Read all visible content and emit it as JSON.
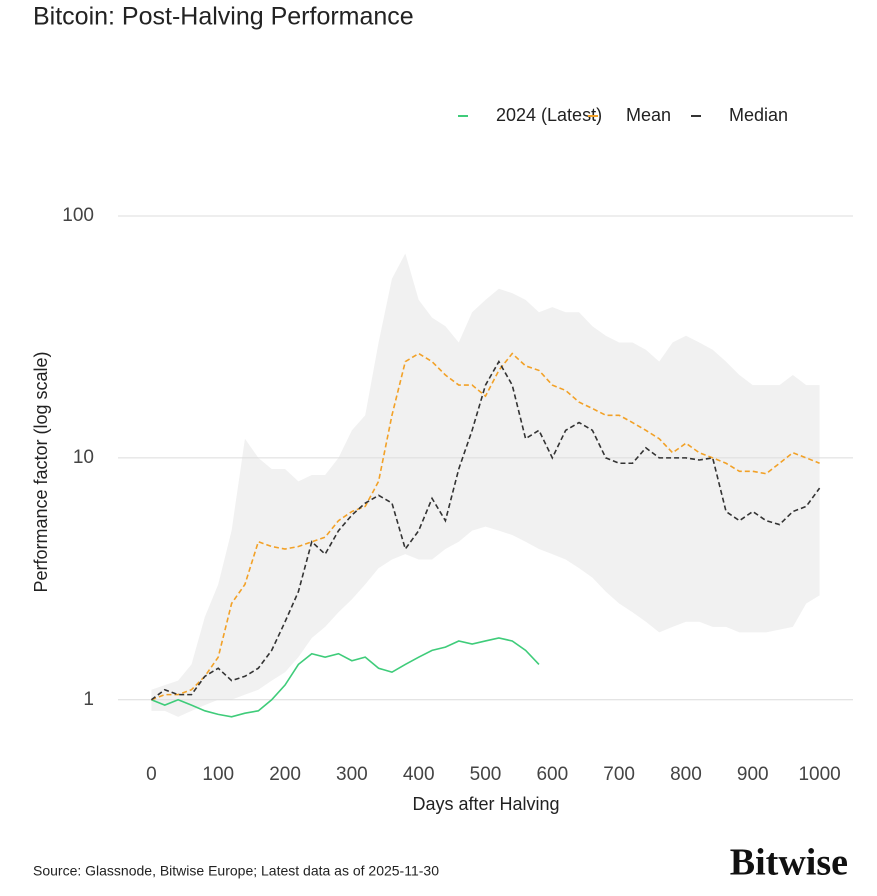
{
  "chart_data": {
    "type": "line",
    "title": "Bitcoin: Post-Halving Performance",
    "x_label": "Days after Halving",
    "y_label": "Performance factor (log scale)",
    "source": "Source: Glassnode, Bitwise Europe; Latest data as of 2025-11-30",
    "brand": "Bitwise",
    "log_scale": true,
    "grid": true,
    "legend_position": "top-right",
    "xlim": [
      -50,
      1050
    ],
    "ylim": [
      0.65,
      100
    ],
    "xticks": [
      0,
      100,
      200,
      300,
      400,
      500,
      600,
      700,
      800,
      900,
      1000
    ],
    "yticks": [
      1,
      10,
      100
    ],
    "x": [
      0,
      20,
      40,
      60,
      80,
      100,
      120,
      140,
      160,
      180,
      200,
      220,
      240,
      260,
      280,
      300,
      320,
      340,
      360,
      380,
      400,
      420,
      440,
      460,
      480,
      500,
      520,
      540,
      560,
      580,
      600,
      620,
      640,
      660,
      680,
      700,
      720,
      740,
      760,
      780,
      800,
      820,
      840,
      860,
      880,
      900,
      920,
      940,
      960,
      980,
      1000
    ],
    "range_band": {
      "color": "#f1f1f1",
      "lower": [
        0.9,
        0.9,
        0.85,
        0.9,
        0.95,
        1.0,
        1.0,
        1.05,
        1.1,
        1.2,
        1.3,
        1.5,
        1.8,
        2.0,
        2.3,
        2.6,
        3.0,
        3.5,
        3.8,
        4.0,
        3.8,
        3.8,
        4.2,
        4.5,
        5,
        5.2,
        5,
        4.8,
        4.5,
        4.2,
        4.0,
        3.8,
        3.5,
        3.2,
        2.8,
        2.5,
        2.3,
        2.1,
        1.9,
        2.0,
        2.1,
        2.1,
        2.0,
        2.0,
        1.9,
        1.9,
        1.9,
        1.95,
        2.0,
        2.5,
        2.7
      ],
      "upper": [
        1.1,
        1.15,
        1.2,
        1.4,
        2.2,
        3.0,
        5,
        12,
        10,
        9,
        9,
        8,
        8.5,
        8.5,
        10,
        13,
        15,
        30,
        55,
        70,
        45,
        38,
        35,
        30,
        40,
        45,
        50,
        48,
        45,
        40,
        42,
        40,
        40,
        35,
        32,
        30,
        30,
        28,
        25,
        30,
        32,
        30,
        28,
        25,
        22,
        20,
        20,
        20,
        22,
        20,
        20
      ]
    },
    "series": [
      {
        "name": "2024 (Latest)",
        "color": "#3fcc7a",
        "dash": "solid",
        "values": [
          1.0,
          0.95,
          1.0,
          0.95,
          0.9,
          0.87,
          0.85,
          0.88,
          0.9,
          1.0,
          1.15,
          1.4,
          1.55,
          1.5,
          1.55,
          1.45,
          1.5,
          1.35,
          1.3,
          1.4,
          1.5,
          1.6,
          1.65,
          1.75,
          1.7,
          1.75,
          1.8,
          1.75,
          1.6,
          1.4,
          null,
          null,
          null,
          null,
          null,
          null,
          null,
          null,
          null,
          null,
          null,
          null,
          null,
          null,
          null,
          null,
          null,
          null,
          null,
          null,
          null
        ]
      },
      {
        "name": "Mean",
        "color": "#f2a127",
        "dash": "dashed",
        "values": [
          1.0,
          1.05,
          1.05,
          1.1,
          1.25,
          1.5,
          2.5,
          3.0,
          4.5,
          4.3,
          4.2,
          4.3,
          4.5,
          4.7,
          5.5,
          6.0,
          6.3,
          8,
          15,
          25,
          27,
          25,
          22,
          20,
          20,
          18,
          23,
          27,
          24,
          23,
          20,
          19,
          17,
          16,
          15,
          15,
          14,
          13,
          12,
          10.5,
          11.5,
          10.5,
          10,
          9.5,
          8.8,
          8.8,
          8.6,
          9.5,
          10.5,
          10,
          9.5
        ]
      },
      {
        "name": "Median",
        "color": "#333333",
        "dash": "dashed",
        "values": [
          1.0,
          1.1,
          1.05,
          1.05,
          1.25,
          1.35,
          1.2,
          1.25,
          1.35,
          1.6,
          2.1,
          2.8,
          4.5,
          4.0,
          5.0,
          5.8,
          6.5,
          7.0,
          6.5,
          4.2,
          5.0,
          6.8,
          5.5,
          9,
          13,
          20,
          25,
          20,
          12,
          13,
          10,
          13,
          14,
          13,
          10,
          9.5,
          9.5,
          11,
          10,
          10,
          10,
          9.8,
          10,
          6,
          5.5,
          6,
          5.5,
          5.3,
          6,
          6.3,
          7.5
        ]
      }
    ]
  }
}
